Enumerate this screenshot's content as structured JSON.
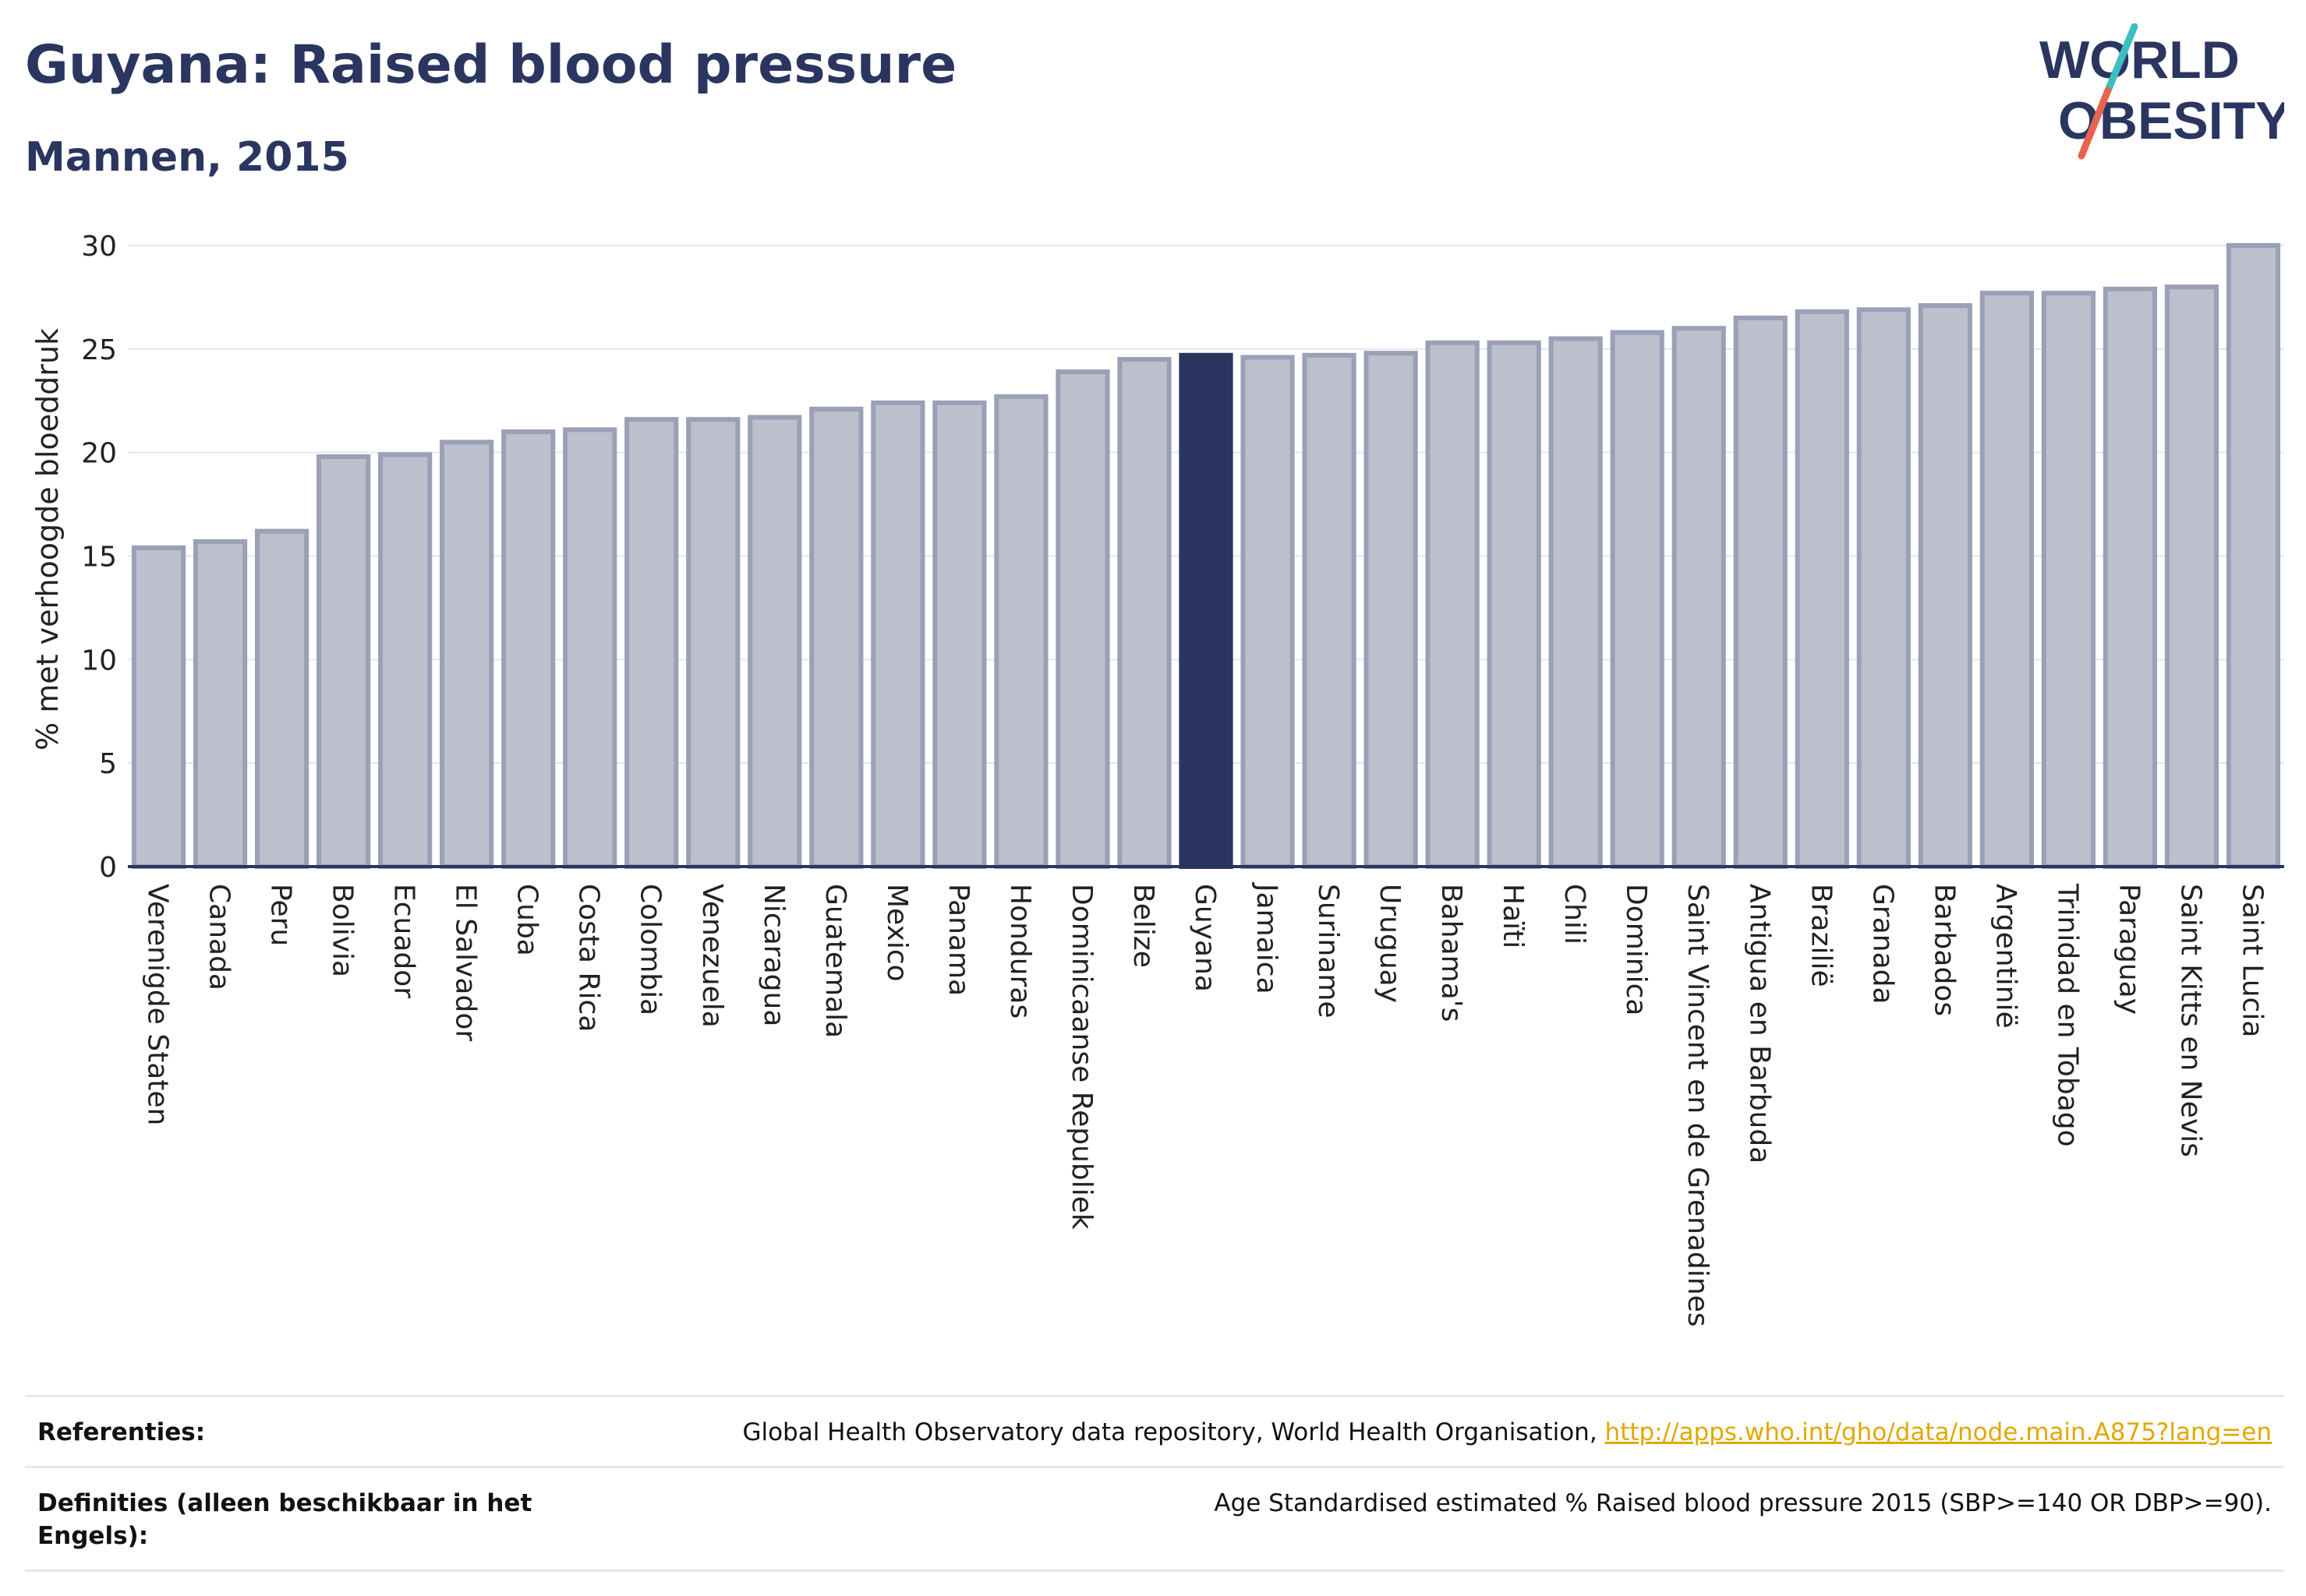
{
  "header": {
    "title": "Guyana: Raised blood pressure",
    "subtitle": "Mannen, 2015"
  },
  "logo": {
    "line1": "WORLD",
    "line2": "OBESITY",
    "colors": {
      "text": "#2a3560",
      "slash_top": "#3bbfbf",
      "slash_bottom": "#e8634f"
    }
  },
  "chart_data": {
    "type": "bar",
    "title": "Guyana: Raised blood pressure",
    "subtitle": "Mannen, 2015",
    "ylabel": "% met verhoogde bloeddruk",
    "xlabel": "",
    "ylim": [
      0,
      30
    ],
    "yticks": [
      0,
      5,
      10,
      15,
      20,
      25,
      30
    ],
    "grid": true,
    "highlight": "Guyana",
    "colors": {
      "bar": "#bcbfcc",
      "bar_edge": "#9aa0b6",
      "highlight": "#2a3560",
      "axis": "#2a3560",
      "grid": "#e4e6ec"
    },
    "categories": [
      "Verenigde Staten",
      "Canada",
      "Peru",
      "Bolivia",
      "Ecuador",
      "El Salvador",
      "Cuba",
      "Costa Rica",
      "Colombia",
      "Venezuela",
      "Nicaragua",
      "Guatemala",
      "Mexico",
      "Panama",
      "Honduras",
      "Dominicaanse Republiek",
      "Belize",
      "Guyana",
      "Jamaica",
      "Suriname",
      "Uruguay",
      "Bahama's",
      "Haïti",
      "Chili",
      "Dominica",
      "Saint Vincent en de Grenadines",
      "Antigua en Barbuda",
      "Brazilië",
      "Granada",
      "Barbados",
      "Argentinië",
      "Trinidad en Tobago",
      "Paraguay",
      "Saint Kitts en Nevis",
      "Saint Lucia"
    ],
    "values": [
      15.4,
      15.7,
      16.2,
      19.8,
      19.9,
      20.5,
      21.0,
      21.1,
      21.6,
      21.6,
      21.7,
      22.1,
      22.4,
      22.4,
      22.7,
      23.9,
      24.5,
      24.7,
      24.6,
      24.7,
      24.8,
      25.3,
      25.3,
      25.5,
      25.8,
      26.0,
      26.5,
      26.8,
      26.9,
      27.1,
      27.7,
      27.7,
      27.9,
      28.0,
      30.0
    ]
  },
  "references": {
    "ref_label": "Referenties:",
    "ref_text": "Global Health Observatory data repository, World Health Organisation, ",
    "ref_link": "http://apps.who.int/gho/data/node.main.A875?lang=en",
    "def_label": "Definities (alleen beschikbaar in het Engels):",
    "def_text": "Age Standardised estimated % Raised blood pressure 2015 (SBP>=140 OR DBP>=90)."
  }
}
